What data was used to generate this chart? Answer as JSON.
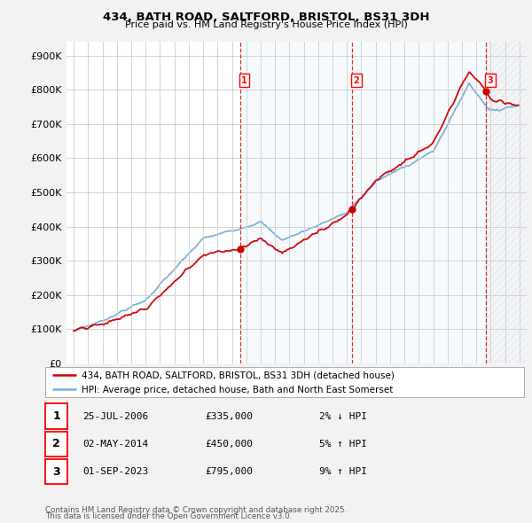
{
  "title": "434, BATH ROAD, SALTFORD, BRISTOL, BS31 3DH",
  "subtitle": "Price paid vs. HM Land Registry's House Price Index (HPI)",
  "property_label": "434, BATH ROAD, SALTFORD, BRISTOL, BS31 3DH (detached house)",
  "hpi_label": "HPI: Average price, detached house, Bath and North East Somerset",
  "footer_line1": "Contains HM Land Registry data © Crown copyright and database right 2025.",
  "footer_line2": "This data is licensed under the Open Government Licence v3.0.",
  "sale_events": [
    {
      "num": 1,
      "date": "25-JUL-2006",
      "price": 335000,
      "pct": "2%",
      "dir": "↓"
    },
    {
      "num": 2,
      "date": "02-MAY-2014",
      "price": 450000,
      "pct": "5%",
      "dir": "↑"
    },
    {
      "num": 3,
      "date": "01-SEP-2023",
      "price": 795000,
      "pct": "9%",
      "dir": "↑"
    }
  ],
  "sale_years": [
    2006.56,
    2014.34,
    2023.67
  ],
  "sale_prices": [
    335000,
    450000,
    795000
  ],
  "ylim": [
    0,
    940000
  ],
  "yticks": [
    0,
    100000,
    200000,
    300000,
    400000,
    500000,
    600000,
    700000,
    800000,
    900000
  ],
  "xlim_left": 1994.5,
  "xlim_right": 2026.5,
  "bg_color": "#f2f2f2",
  "plot_bg": "#ffffff",
  "red_color": "#cc0000",
  "blue_color": "#7aadd4",
  "grid_color": "#cccccc",
  "shade_color": "#d6e8f5"
}
